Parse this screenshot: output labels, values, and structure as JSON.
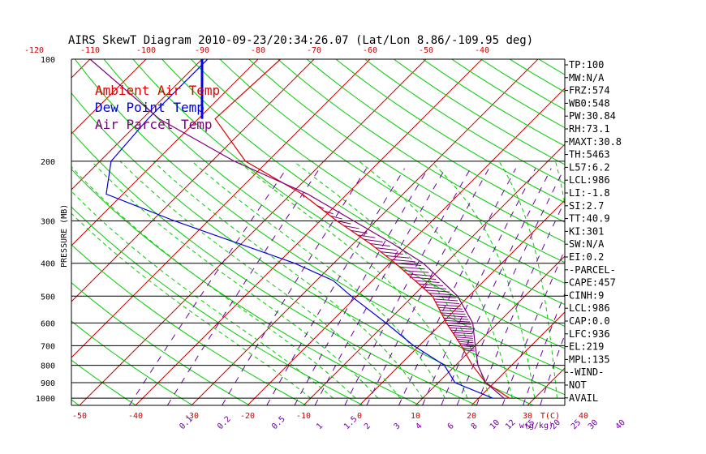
{
  "chart_data": {
    "type": "line",
    "title": "AIRS SkewT Diagram 2010-09-23/20:34:26.07 (Lat/Lon 8.86/-109.95 deg)",
    "ylabel": "PRESSURE (MB)",
    "xlabel_unit": "T(C)",
    "mixing_ratio_unit": "w(g/kg)",
    "pressure_ticks": [
      100,
      200,
      300,
      400,
      500,
      600,
      700,
      800,
      900,
      1000
    ],
    "top_temp_ticks": [
      -120,
      -110,
      -100,
      -90,
      -80,
      -70,
      -60,
      -50,
      -40
    ],
    "bottom_temp_ticks": [
      -50,
      -40,
      -30,
      -20,
      -10,
      0,
      10,
      20,
      30,
      40
    ],
    "mixing_ratio_ticks": [
      "0.1",
      "0.2",
      "0.5",
      "1",
      "1.5",
      "2",
      "3",
      "4",
      "6",
      "8",
      "10",
      "12",
      "15",
      "20",
      "25",
      "30",
      "40"
    ],
    "legend": [
      {
        "label": "Ambient Air Temp",
        "color": "#e00000"
      },
      {
        "label": "Dew Point Temp",
        "color": "#0000dd"
      },
      {
        "label": "Air Parcel Temp",
        "color": "#7b007b"
      }
    ],
    "colors": {
      "isotherm": "#cc0000",
      "dry_adiabat": "#00cc00",
      "moist_adiabat": "#00cc00",
      "mixing_ratio": "#6a00a0",
      "isobar": "#000000",
      "hatch": "#7b007b"
    },
    "series": [
      {
        "name": "Ambient Air Temp",
        "points": [
          [
            100,
            -76
          ],
          [
            150,
            -77
          ],
          [
            200,
            -64
          ],
          [
            250,
            -48
          ],
          [
            300,
            -37
          ],
          [
            350,
            -27
          ],
          [
            400,
            -19
          ],
          [
            500,
            -6.5
          ],
          [
            600,
            0.8
          ],
          [
            700,
            7.5
          ],
          [
            800,
            13
          ],
          [
            900,
            18.5
          ],
          [
            1000,
            25.5
          ]
        ]
      },
      {
        "name": "Dew Point Temp",
        "points": [
          [
            100,
            -89
          ],
          [
            150,
            -89
          ],
          [
            200,
            -88
          ],
          [
            250,
            -83
          ],
          [
            300,
            -66
          ],
          [
            400,
            -37
          ],
          [
            450,
            -27
          ],
          [
            500,
            -21
          ],
          [
            600,
            -10
          ],
          [
            700,
            -1
          ],
          [
            800,
            8
          ],
          [
            900,
            13
          ],
          [
            1000,
            22.5
          ]
        ]
      },
      {
        "name": "Air Parcel Temp",
        "points": [
          [
            100,
            -110
          ],
          [
            150,
            -87
          ],
          [
            200,
            -66
          ],
          [
            250,
            -47
          ],
          [
            300,
            -34
          ],
          [
            350,
            -23
          ],
          [
            400,
            -14
          ],
          [
            500,
            -2
          ],
          [
            600,
            5.5
          ],
          [
            700,
            10
          ],
          [
            800,
            14
          ],
          [
            900,
            18.5
          ],
          [
            1000,
            24.5
          ]
        ]
      }
    ],
    "wind_profile": {
      "present": true,
      "color": "#0000ee",
      "top_pressure": 100,
      "bottom_pressure": 150,
      "temp": -90
    },
    "indices": [
      "TP:100",
      "MW:N/A",
      "FRZ:574",
      "WB0:548",
      "PW:30.84",
      "RH:73.1",
      "MAXT:30.8",
      "TH:5463",
      "L57:6.2",
      "LCL:986",
      "LI:-1.8",
      "SI:2.7",
      "TT:40.9",
      "KI:301",
      "SW:N/A",
      "EI:0.2",
      "-PARCEL-",
      "CAPE:457",
      "CINH:9",
      "LCL:986",
      "CAP:0.0",
      "LFC:936",
      "EL:219",
      "MPL:135",
      "-WIND-",
      "NOT",
      "AVAIL"
    ]
  }
}
